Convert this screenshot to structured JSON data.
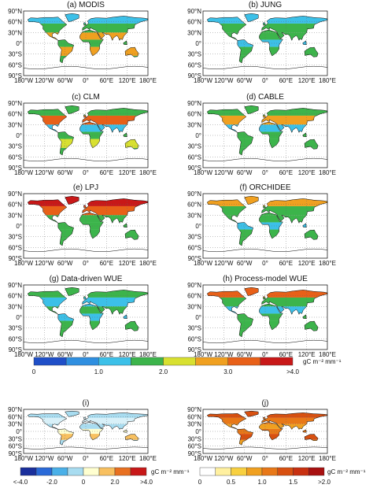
{
  "panels": [
    {
      "title": "(a) MODIS"
    },
    {
      "title": "(b) JUNG"
    },
    {
      "title": "(c) CLM"
    },
    {
      "title": "(d) CABLE"
    },
    {
      "title": "(e) LPJ"
    },
    {
      "title": "(f) ORCHIDEE"
    },
    {
      "title": "(g) Data-driven WUE"
    },
    {
      "title": "(h) Process-model WUE"
    },
    {
      "title": "(i)"
    },
    {
      "title": "(j)"
    }
  ],
  "lat_labels": [
    "90°N",
    "60°N",
    "30°N",
    "0°",
    "30°S",
    "60°S",
    "90°S"
  ],
  "lon_labels": [
    "180°W",
    "120°W",
    "60°W",
    "0°",
    "60°E",
    "120°E",
    "180°E"
  ],
  "colorbars": [
    {
      "labels": [
        "0",
        "1.0",
        "2.0",
        "3.0",
        ">4.0"
      ],
      "unit": "gC m⁻² mm⁻¹"
    },
    {
      "labels": [
        "<-4.0",
        "-2.0",
        "0",
        "2.0",
        ">4.0"
      ],
      "unit": "gC m⁻² mm⁻¹"
    },
    {
      "labels": [
        "0",
        "0.5",
        "1.0",
        "1.5",
        ">2.0"
      ],
      "unit": "gC m⁻² mm⁻¹"
    }
  ]
}
